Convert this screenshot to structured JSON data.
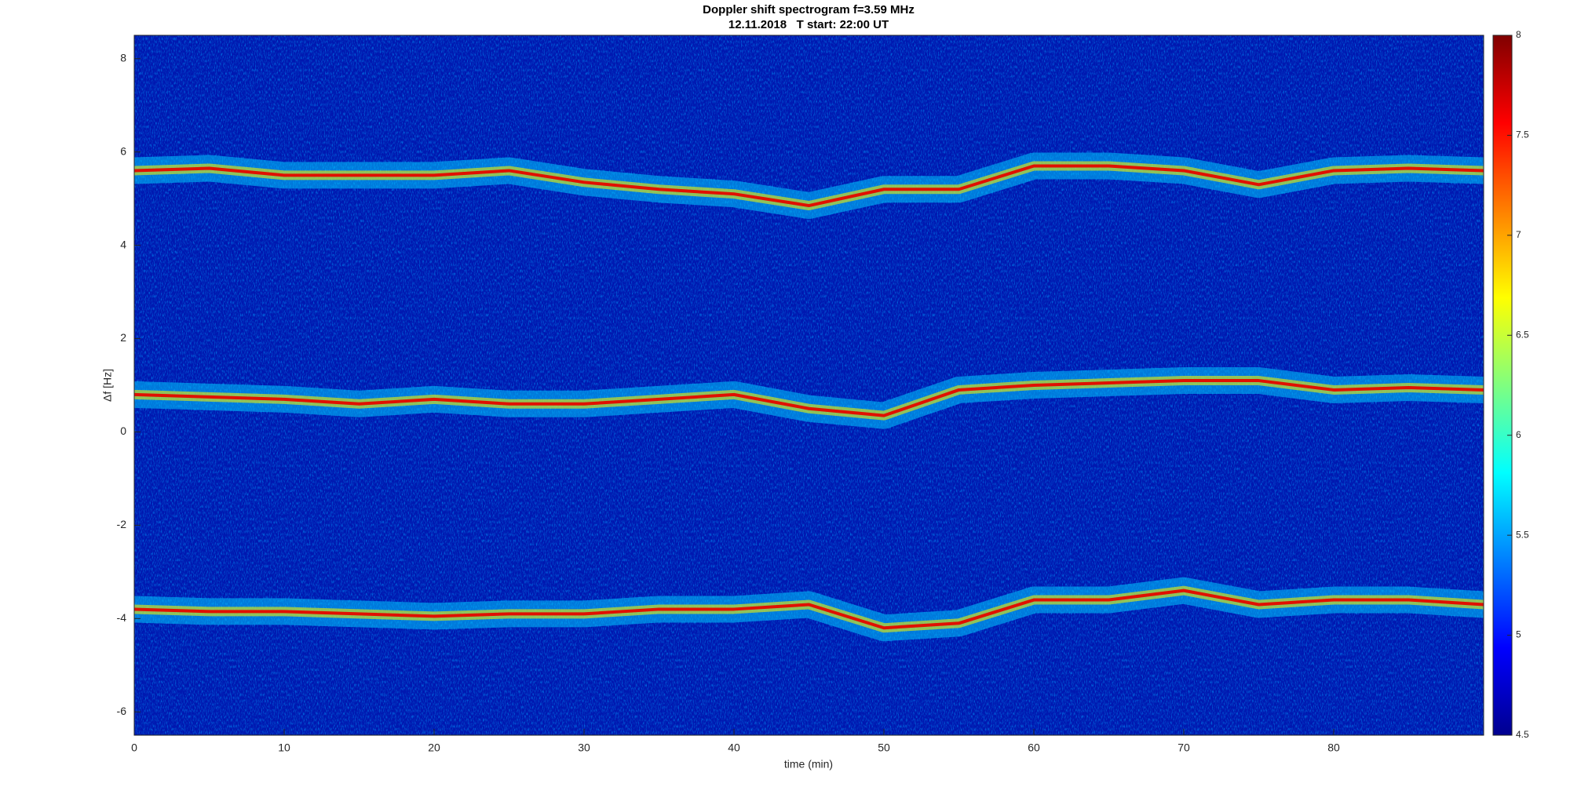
{
  "chart_data": {
    "type": "spectrogram",
    "title": "Doppler shift spectrogram f=3.59 MHz",
    "subtitle": "12.11.2018   T start: 22:00 UT",
    "x_label": "time (min)",
    "y_label": "Δf [Hz]",
    "x": [
      0,
      5,
      10,
      15,
      20,
      25,
      30,
      35,
      40,
      45,
      50,
      55,
      60,
      65,
      70,
      75,
      80,
      85,
      90
    ],
    "series": [
      {
        "color": "#e01000",
        "values": [
          5.6,
          5.65,
          5.5,
          5.5,
          5.5,
          5.6,
          5.35,
          5.2,
          5.1,
          4.85,
          5.2,
          5.2,
          5.7,
          5.7,
          5.6,
          5.3,
          5.6,
          5.65,
          5.6
        ]
      },
      {
        "color": "#e01000",
        "values": [
          0.8,
          0.75,
          0.7,
          0.6,
          0.7,
          0.6,
          0.6,
          0.7,
          0.8,
          0.5,
          0.35,
          0.9,
          1.0,
          1.05,
          1.1,
          1.1,
          0.9,
          0.95,
          0.9
        ]
      },
      {
        "color": "#e01000",
        "values": [
          -3.8,
          -3.85,
          -3.85,
          -3.9,
          -3.95,
          -3.9,
          -3.9,
          -3.8,
          -3.8,
          -3.7,
          -4.2,
          -4.1,
          -3.6,
          -3.6,
          -3.4,
          -3.7,
          -3.6,
          -3.6,
          -3.7
        ]
      }
    ],
    "xlim": [
      0,
      90
    ],
    "xticks": [
      0,
      10,
      20,
      30,
      40,
      50,
      60,
      70,
      80
    ],
    "ylim": [
      -6.5,
      8.5
    ],
    "yticks": [
      -6,
      -4,
      -2,
      0,
      2,
      4,
      6,
      8
    ],
    "colorbar": {
      "lim": [
        4.5,
        8
      ],
      "ticks": [
        4.5,
        5,
        5.5,
        6,
        6.5,
        7,
        7.5,
        8
      ]
    }
  }
}
